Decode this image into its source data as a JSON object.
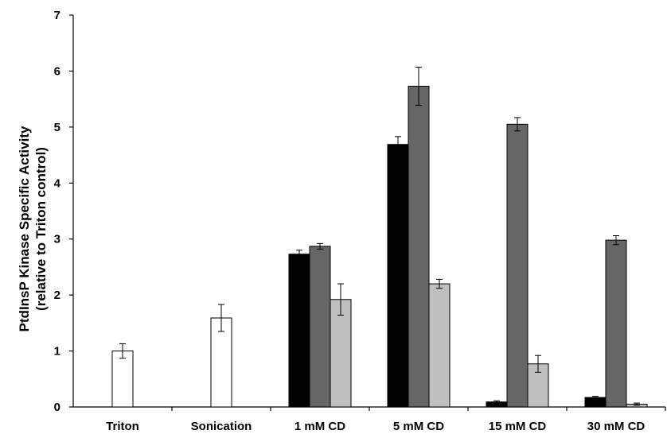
{
  "chart_data": {
    "type": "bar",
    "title": "",
    "xlabel": "",
    "ylabel_line1": "PtdInsP Kinase Specific Activity",
    "ylabel_line2": "(relative to Triton control)",
    "ylim": [
      0,
      7
    ],
    "yticks": [
      "0",
      "1",
      "2",
      "3",
      "4",
      "5",
      "6",
      "7"
    ],
    "grid": false,
    "legend": "none",
    "categories": [
      "Triton",
      "Sonication",
      "1 mM CD",
      "5 mM CD",
      "15 mM CD",
      "30 mM CD"
    ],
    "series": [
      {
        "color": "#ffffff",
        "values": [
          1.0,
          1.59,
          null,
          null,
          null,
          null
        ],
        "errors": [
          0.13,
          0.24,
          null,
          null,
          null,
          null
        ]
      },
      {
        "color": "#000000",
        "values": [
          null,
          null,
          2.73,
          4.69,
          0.09,
          0.17
        ],
        "errors": [
          null,
          null,
          0.07,
          0.14,
          0.02,
          0.02
        ]
      },
      {
        "color": "#666666",
        "values": [
          null,
          null,
          2.87,
          5.73,
          5.05,
          2.98
        ],
        "errors": [
          null,
          null,
          0.05,
          0.34,
          0.12,
          0.08
        ]
      },
      {
        "color": "#bfbfbf",
        "values": [
          null,
          null,
          1.92,
          2.2,
          0.77,
          0.05
        ],
        "errors": [
          null,
          null,
          0.28,
          0.08,
          0.15,
          0.02
        ]
      }
    ]
  }
}
